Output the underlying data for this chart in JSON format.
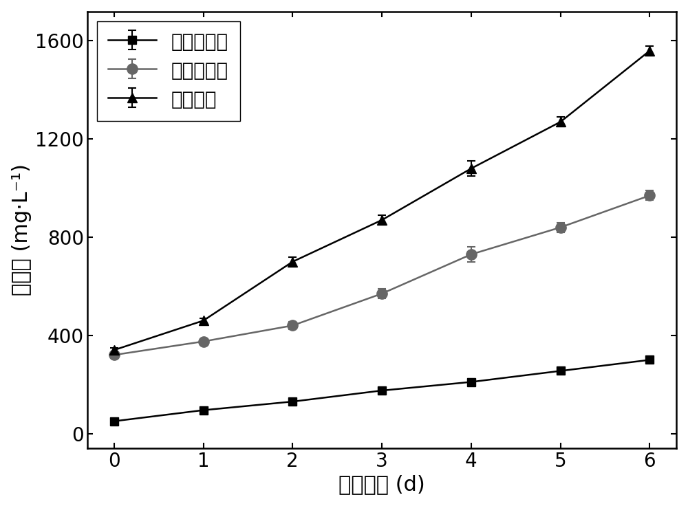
{
  "x": [
    0,
    1,
    2,
    3,
    4,
    5,
    6
  ],
  "series": [
    {
      "label": "荚膜红细菌",
      "y": [
        50,
        95,
        130,
        175,
        210,
        255,
        300
      ],
      "yerr": [
        5,
        8,
        10,
        10,
        12,
        10,
        10
      ],
      "color": "#000000",
      "marker": "s",
      "markersize": 8,
      "linewidth": 1.8
    },
    {
      "label": "普通小球藻",
      "y": [
        320,
        375,
        440,
        570,
        730,
        840,
        970
      ],
      "yerr": [
        10,
        10,
        15,
        20,
        30,
        20,
        20
      ],
      "color": "#666666",
      "marker": "o",
      "markersize": 11,
      "linewidth": 1.8
    },
    {
      "label": "藻菌混合",
      "y": [
        340,
        460,
        700,
        870,
        1080,
        1270,
        1560
      ],
      "yerr": [
        10,
        10,
        20,
        20,
        30,
        20,
        20
      ],
      "color": "#000000",
      "marker": "^",
      "markersize": 10,
      "linewidth": 1.8
    }
  ],
  "xlabel": "培养时间 (d)",
  "ylabel": "生物量 (mg·L⁻¹)",
  "xlim": [
    -0.3,
    6.3
  ],
  "ylim": [
    -60,
    1720
  ],
  "yticks": [
    0,
    400,
    800,
    1200,
    1600
  ],
  "xticks": [
    0,
    1,
    2,
    3,
    4,
    5,
    6
  ],
  "legend_loc": "upper left",
  "background_color": "#ffffff",
  "axis_color": "#000000",
  "fontsize_label": 22,
  "fontsize_tick": 20,
  "fontsize_legend": 20
}
